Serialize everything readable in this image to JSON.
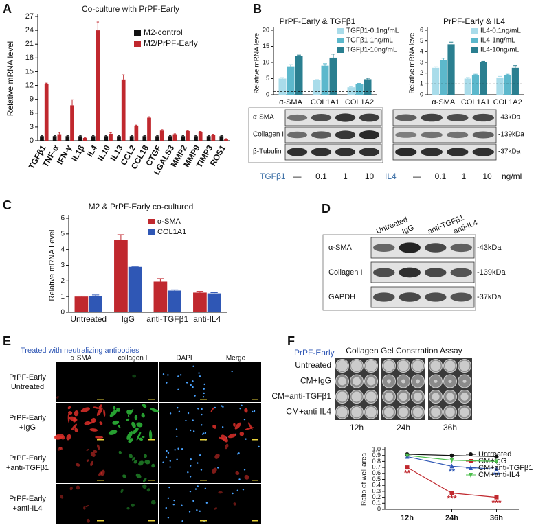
{
  "panel_labels": [
    "A",
    "B",
    "C",
    "D",
    "E",
    "F"
  ],
  "chart_data": [
    {
      "type": "bar",
      "title": "Co-culture with PrPF-Early",
      "y_label": "Relative mRNA level",
      "categories": [
        "TGFβ1",
        "TNF-α",
        "IFN-γ",
        "IL1β",
        "IL4",
        "IL10",
        "IL13",
        "CCL2",
        "CCL18",
        "CTGF",
        "LGALS3",
        "MMP2",
        "MMP9",
        "TIMP3",
        "ROS1"
      ],
      "series": [
        {
          "name": "M2-control",
          "color": "#111111",
          "values": [
            1,
            1,
            1,
            1,
            1,
            1,
            1,
            1,
            1,
            1,
            1,
            1,
            1,
            1,
            1
          ],
          "errors": [
            0.1,
            0.1,
            0.1,
            0.1,
            0.1,
            0.1,
            0.1,
            0.1,
            0.1,
            0.1,
            0.1,
            0.1,
            0.1,
            0.1,
            0.1
          ]
        },
        {
          "name": "M2/PrPF-Early",
          "color": "#c0282e",
          "values": [
            12.3,
            1.4,
            7.7,
            0.6,
            24,
            1.5,
            13.3,
            3.3,
            5,
            2.2,
            1.4,
            2.1,
            1.8,
            1.2,
            0.4
          ],
          "errors": [
            0.2,
            0.4,
            1.2,
            0.1,
            1.8,
            0.2,
            1,
            0.1,
            0.2,
            0.2,
            0.1,
            0.1,
            0.2,
            0.2,
            0.05
          ]
        }
      ],
      "ylim": [
        0,
        27
      ],
      "yticks": [
        0,
        3,
        6,
        9,
        12,
        15,
        18,
        21,
        24,
        27
      ],
      "legend": "upper right",
      "grid": false
    },
    {
      "type": "bar",
      "title": "PrPF-Early & TGFβ1",
      "y_label": "Relative mRNA level",
      "categories": [
        "α-SMA",
        "COL1A1",
        "COL1A2"
      ],
      "series": [
        {
          "name": "TGFβ1-0.1ng/mL",
          "color": "#a9dcea",
          "values": [
            5,
            4.5,
            2.3
          ],
          "errors": [
            0.3,
            0.2,
            0.2
          ]
        },
        {
          "name": "TGFβ1-1ng/mL",
          "color": "#5cb8cc",
          "values": [
            8.8,
            9,
            3.3
          ],
          "errors": [
            0.5,
            0.6,
            0.2
          ]
        },
        {
          "name": "TGFβ1-10ng/mL",
          "color": "#2a7f90",
          "values": [
            12,
            11.5,
            4.8
          ],
          "errors": [
            0.3,
            1.1,
            0.3
          ]
        }
      ],
      "ylim": [
        0,
        20
      ],
      "yticks": [
        0,
        5,
        10,
        15,
        20
      ],
      "reference_line": 1,
      "legend": "upper right",
      "grid": false
    },
    {
      "type": "bar",
      "title": "PrPF-Early & IL4",
      "y_label": "Relative mRNA level",
      "categories": [
        "α-SMA",
        "COL1A1",
        "COL1A2"
      ],
      "series": [
        {
          "name": "IL4-0.1ng/mL",
          "color": "#a9dcea",
          "values": [
            2.5,
            1.5,
            1.6
          ],
          "errors": [
            0.1,
            0.1,
            0.1
          ]
        },
        {
          "name": "IL4-1ng/mL",
          "color": "#5cb8cc",
          "values": [
            3.2,
            1.8,
            1.8
          ],
          "errors": [
            0.2,
            0.1,
            0.1
          ]
        },
        {
          "name": "IL4-10ng/mL",
          "color": "#2a7f90",
          "values": [
            4.7,
            3,
            2.5
          ],
          "errors": [
            0.2,
            0.1,
            0.2
          ]
        }
      ],
      "ylim": [
        0,
        6
      ],
      "yticks": [
        0,
        1,
        2,
        3,
        4,
        5,
        6
      ],
      "reference_line": 1,
      "legend": "upper right",
      "grid": false
    },
    {
      "type": "bar",
      "title": "M2 & PrPF-Early co-cultured",
      "y_label": "Relative mRNA Level",
      "categories": [
        "Untreated",
        "IgG",
        "anti-TGFβ1",
        "anti-IL4"
      ],
      "series": [
        {
          "name": "α-SMA",
          "color": "#c0282e",
          "values": [
            1,
            4.6,
            1.95,
            1.25
          ],
          "errors": [
            0.03,
            0.35,
            0.2,
            0.08
          ]
        },
        {
          "name": "COL1A1",
          "color": "#2f57b5",
          "values": [
            1.05,
            2.9,
            1.38,
            1.2
          ],
          "errors": [
            0.05,
            0.03,
            0.05,
            0.05
          ]
        }
      ],
      "ylim": [
        0,
        6
      ],
      "yticks": [
        0,
        1,
        2,
        3,
        4,
        5,
        6
      ],
      "legend": "upper right",
      "grid": false
    },
    {
      "type": "line",
      "y_label": "Ratio of well area",
      "categories": [
        "12h",
        "24h",
        "36h"
      ],
      "series": [
        {
          "name": "Untreated",
          "color": "#111111",
          "marker": "circle",
          "values": [
            0.92,
            0.9,
            0.88
          ],
          "annotations": [
            null,
            null,
            null
          ]
        },
        {
          "name": "CM+IgG",
          "color": "#c0282e",
          "marker": "square",
          "values": [
            0.7,
            0.27,
            0.2
          ],
          "annotations": [
            "**",
            "***",
            "***"
          ]
        },
        {
          "name": "CM+anti-TGFβ1",
          "color": "#2f57b5",
          "marker": "triangle",
          "values": [
            0.88,
            0.72,
            0.67
          ],
          "annotations": [
            null,
            "**",
            "**"
          ]
        },
        {
          "name": "CM+anti-IL4",
          "color": "#4cbf4c",
          "marker": "triangle-down",
          "values": [
            0.9,
            0.82,
            0.8
          ],
          "annotations": [
            null,
            null,
            null
          ]
        }
      ],
      "ylim": [
        0,
        1
      ],
      "yticks": [
        0,
        0.1,
        0.2,
        0.3,
        0.4,
        0.5,
        0.6,
        0.7,
        0.8,
        0.9,
        {
          "value": 1,
          "label": "1.0"
        }
      ],
      "legend": "upper right",
      "grid": false
    }
  ],
  "blots": [
    {
      "row_labels": [
        "α-SMA",
        "Collagen I",
        "β-Tubulin"
      ],
      "treatment": "TGFβ1",
      "lanes": [
        "—",
        "0.1",
        "1",
        "10"
      ]
    },
    {
      "sizes": [
        "-43kDa",
        "-139kDa",
        "-37kDa"
      ],
      "treatment": "IL4",
      "lanes": [
        "—",
        "0.1",
        "1",
        "10"
      ],
      "unit": "ng/ml"
    },
    {
      "row_labels": [
        "α-SMA",
        "Collagen I",
        "GAPDH"
      ],
      "sizes": [
        "-43kDa",
        "-139kDa",
        "-37kDa"
      ],
      "lanes": [
        "Untreated",
        "IgG",
        "anti-TGFβ1",
        "anti-IL4"
      ]
    }
  ],
  "microscopy": {
    "title": "Treated with neutralizing antibodies",
    "columns": [
      "α-SMA",
      "collagen I",
      "DAPI",
      "Merge"
    ],
    "rows": [
      [
        "PrPF-Early",
        "Untreated"
      ],
      [
        "PrPF-Early",
        "+IgG"
      ],
      [
        "PrPF-Early",
        "+anti-TGFβ1"
      ],
      [
        "PrPF-Early",
        "+anti-IL4"
      ]
    ]
  },
  "gel_assay": {
    "group": "PrPF-Early",
    "title": "Collagen Gel Constration Assay",
    "rows": [
      "Untreated",
      "CM+IgG",
      "CM+anti-TGFβ1",
      "CM+anti-IL4"
    ],
    "times": [
      "12h",
      "24h",
      "36h"
    ]
  }
}
